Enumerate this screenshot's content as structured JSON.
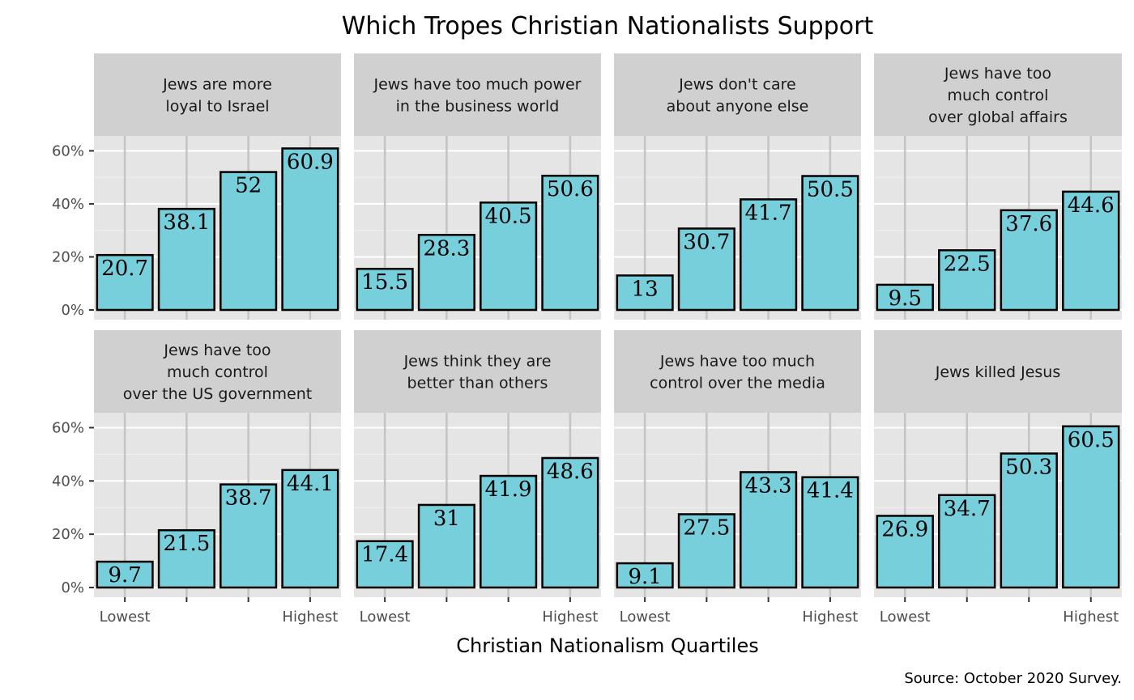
{
  "chart_data": {
    "type": "bar",
    "title": "Which Tropes Christian Nationalists Support",
    "xlabel": "Christian Nationalism Quartiles",
    "ylabel": "",
    "caption": "Source: October 2020 Survey.",
    "ylim": [
      0,
      65
    ],
    "y_ticks": [
      0,
      20,
      40,
      60
    ],
    "y_tick_labels": [
      "0%",
      "20%",
      "40%",
      "60%"
    ],
    "categories": [
      "Q1",
      "Q2",
      "Q3",
      "Q4"
    ],
    "x_tick_labels": [
      "Lowest",
      "",
      "",
      "Highest"
    ],
    "bar_color": "#76cfdb",
    "bar_outline_color": "#000000",
    "panel_background": "#e5e5e5",
    "strip_background": "#d0d0d0",
    "grid": true,
    "facets": [
      {
        "label": [
          "Jews are more",
          "loyal to Israel"
        ],
        "values": [
          20.7,
          38.1,
          52,
          60.9
        ]
      },
      {
        "label": [
          "Jews have too much power",
          "in the business world"
        ],
        "values": [
          15.5,
          28.3,
          40.5,
          50.6
        ]
      },
      {
        "label": [
          "Jews don't care",
          "about anyone else"
        ],
        "values": [
          13,
          30.7,
          41.7,
          50.5
        ]
      },
      {
        "label": [
          "Jews have too",
          "much control",
          "over global affairs"
        ],
        "values": [
          9.5,
          22.5,
          37.6,
          44.6
        ]
      },
      {
        "label": [
          "Jews have too",
          "much control",
          "over the US government"
        ],
        "values": [
          9.7,
          21.5,
          38.7,
          44.1
        ]
      },
      {
        "label": [
          "Jews think they are",
          "better than others"
        ],
        "values": [
          17.4,
          31,
          41.9,
          48.6
        ]
      },
      {
        "label": [
          "Jews have too much",
          "control over the media"
        ],
        "values": [
          9.1,
          27.5,
          43.3,
          41.4
        ]
      },
      {
        "label": [
          "Jews killed Jesus"
        ],
        "values": [
          26.9,
          34.7,
          50.3,
          60.5
        ]
      }
    ]
  }
}
